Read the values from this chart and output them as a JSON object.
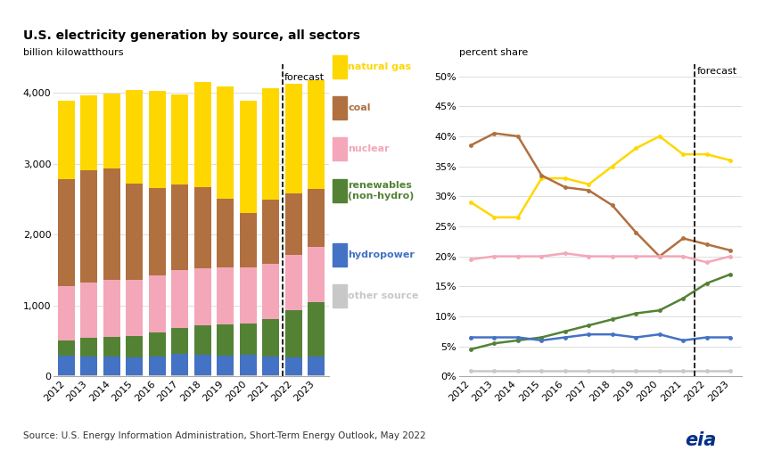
{
  "title": "U.S. electricity generation by source, all sectors",
  "ylabel_bar": "billion kilowatthours",
  "ylabel_line": "percent share",
  "source": "Source: U.S. Energy Information Administration, Short-Term Energy Outlook, May 2022",
  "years": [
    2012,
    2013,
    2014,
    2015,
    2016,
    2017,
    2018,
    2019,
    2020,
    2021,
    2022,
    2023
  ],
  "bar_data": {
    "other": [
      18,
      18,
      18,
      18,
      18,
      18,
      18,
      18,
      18,
      18,
      18,
      18
    ],
    "hydropower": [
      270,
      268,
      259,
      251,
      268,
      299,
      292,
      274,
      291,
      258,
      255,
      265
    ],
    "renewables": [
      215,
      253,
      281,
      298,
      330,
      371,
      406,
      438,
      436,
      537,
      660,
      760
    ],
    "nuclear": [
      769,
      789,
      797,
      797,
      805,
      805,
      808,
      809,
      790,
      778,
      778,
      778
    ],
    "coal": [
      1514,
      1582,
      1582,
      1355,
      1239,
      1206,
      1146,
      966,
      773,
      899,
      870,
      820
    ],
    "natural_gas": [
      1100,
      1046,
      1050,
      1318,
      1370,
      1280,
      1480,
      1580,
      1580,
      1576,
      1540,
      1530
    ]
  },
  "bar_colors": {
    "other": "#c8c8c8",
    "hydropower": "#4472c4",
    "renewables": "#548235",
    "nuclear": "#f4a7b9",
    "coal": "#b07040",
    "natural_gas": "#ffd700"
  },
  "line_data": {
    "natural_gas": [
      29.0,
      26.5,
      26.5,
      33.0,
      33.0,
      32.0,
      35.0,
      38.0,
      40.0,
      37.0,
      37.0,
      36.0
    ],
    "coal": [
      38.5,
      40.5,
      40.0,
      33.5,
      31.5,
      31.0,
      28.5,
      24.0,
      20.0,
      23.0,
      22.0,
      21.0
    ],
    "nuclear": [
      19.5,
      20.0,
      20.0,
      20.0,
      20.5,
      20.0,
      20.0,
      20.0,
      20.0,
      20.0,
      19.0,
      20.0
    ],
    "renewables": [
      4.5,
      5.5,
      6.0,
      6.5,
      7.5,
      8.5,
      9.5,
      10.5,
      11.0,
      13.0,
      15.5,
      17.0
    ],
    "hydropower": [
      6.5,
      6.5,
      6.5,
      6.0,
      6.5,
      7.0,
      7.0,
      6.5,
      7.0,
      6.0,
      6.5,
      6.5
    ],
    "other": [
      1.0,
      1.0,
      1.0,
      1.0,
      1.0,
      1.0,
      1.0,
      1.0,
      1.0,
      1.0,
      1.0,
      1.0
    ]
  },
  "line_colors": {
    "natural_gas": "#ffd700",
    "coal": "#b07040",
    "nuclear": "#f4a7b9",
    "renewables": "#548235",
    "hydropower": "#4472c4",
    "other": "#c8c8c8"
  },
  "legend_order": [
    "natural_gas",
    "coal",
    "nuclear",
    "renewables",
    "hydropower",
    "other"
  ],
  "legend_labels": {
    "natural_gas": "natural gas",
    "coal": "coal",
    "nuclear": "nuclear",
    "renewables": "renewables\n(non-hydro)",
    "hydropower": "hydropower",
    "other": "other source"
  }
}
